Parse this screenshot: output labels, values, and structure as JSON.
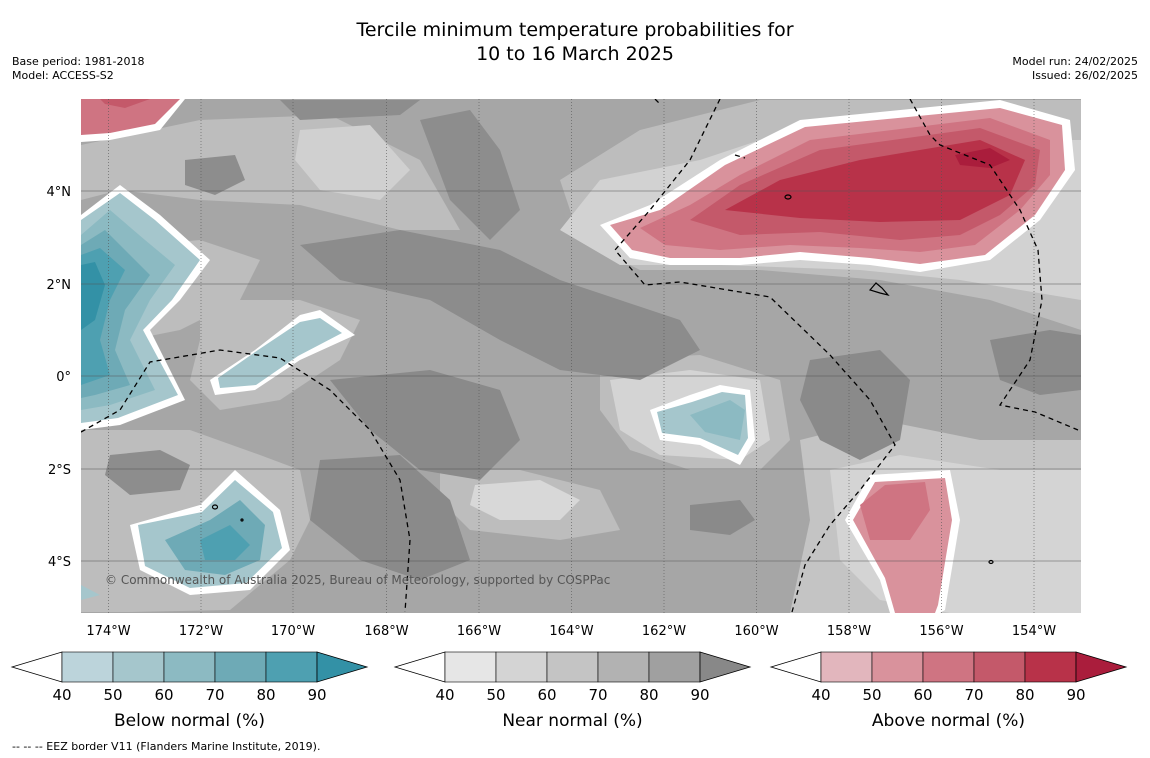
{
  "title": {
    "line1": "Tercile minimum temperature probabilities for",
    "line2": "10 to 16 March 2025"
  },
  "meta": {
    "base_period": "Base period: 1981-2018",
    "model": "Model: ACCESS-S2",
    "model_run": "Model run: 24/02/2025",
    "issued": "Issued: 26/02/2025"
  },
  "map": {
    "lon_ticks": [
      "174°W",
      "172°W",
      "170°W",
      "168°W",
      "166°W",
      "164°W",
      "162°W",
      "160°W",
      "158°W",
      "156°W",
      "154°W"
    ],
    "lat_ticks": [
      "4°N",
      "2°N",
      "0°",
      "2°S",
      "4°S"
    ],
    "copyright": "© Commonwealth of Australia 2025, Bureau of Meteorology, supported by COSPPac",
    "colors": {
      "ocean_near_base": "#a6a6a6",
      "land_outline": "#000000",
      "eez_line": "#000000"
    }
  },
  "colorbars": [
    {
      "title": "Below normal (%)",
      "ticks": [
        "40",
        "50",
        "60",
        "70",
        "80",
        "90"
      ],
      "colors": [
        "#bcd4db",
        "#a5c6cc",
        "#8cbac2",
        "#6eaab6",
        "#4ea0b1",
        "#3391a6"
      ]
    },
    {
      "title": "Near normal (%)",
      "ticks": [
        "40",
        "50",
        "60",
        "70",
        "80",
        "90"
      ],
      "colors": [
        "#e6e6e6",
        "#d4d4d4",
        "#c4c4c4",
        "#b2b2b2",
        "#a0a0a0",
        "#888888"
      ]
    },
    {
      "title": "Above normal (%)",
      "ticks": [
        "40",
        "50",
        "60",
        "70",
        "80",
        "90"
      ],
      "colors": [
        "#e2b6bd",
        "#d9929c",
        "#cf7482",
        "#c4596a",
        "#b83249",
        "#aa1d3c"
      ]
    }
  ],
  "footnote": "-- -- -- EEZ border V11 (Flanders Marine Institute, 2019)."
}
